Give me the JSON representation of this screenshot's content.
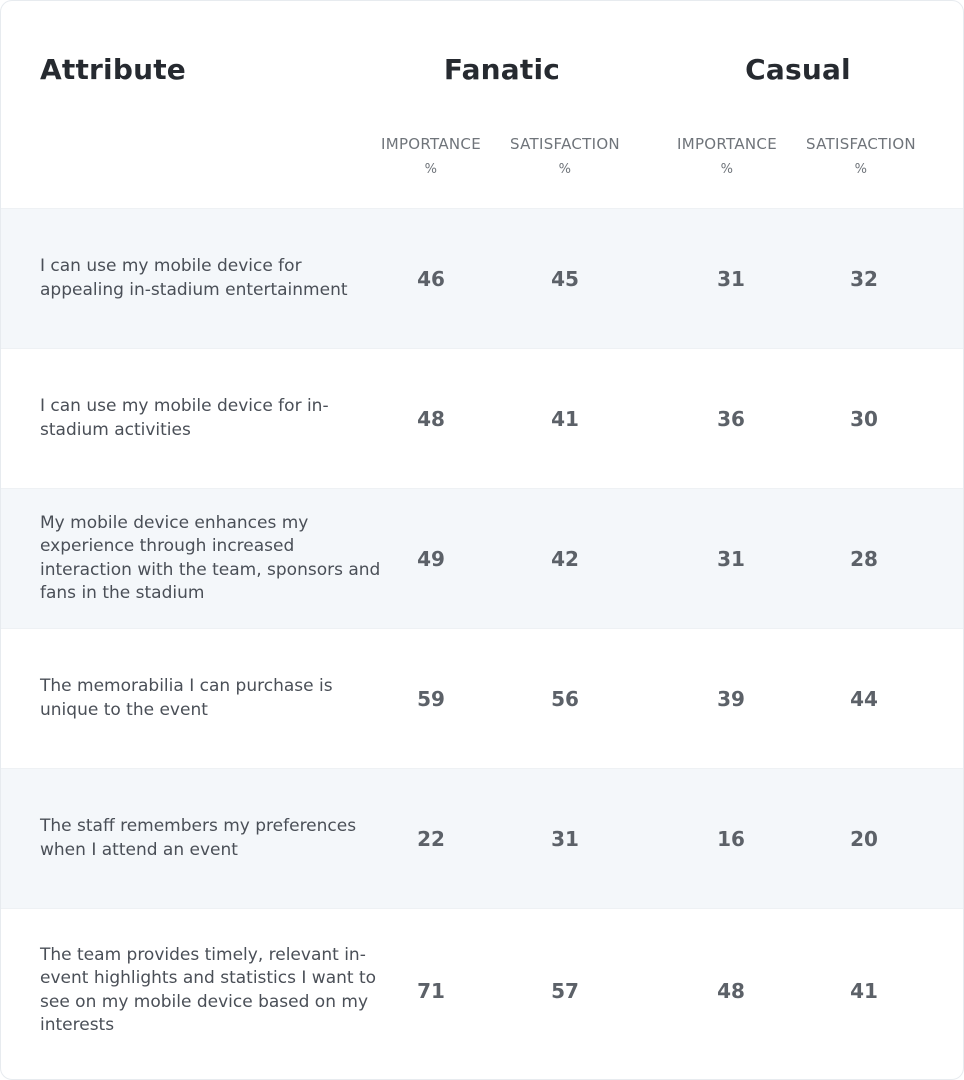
{
  "chart_data": {
    "type": "table",
    "header": {
      "attribute": "Attribute",
      "groups": [
        "Fanatic",
        "Casual"
      ],
      "subcolumns": [
        {
          "label": "IMPORTANCE",
          "unit": "%"
        },
        {
          "label": "SATISFACTION",
          "unit": "%"
        },
        {
          "label": "IMPORTANCE",
          "unit": "%"
        },
        {
          "label": "SATISFACTION",
          "unit": "%"
        }
      ]
    },
    "rows": [
      {
        "attribute": "I can use my mobile device for appealing in-stadium entertainment",
        "values": [
          46,
          45,
          31,
          32
        ]
      },
      {
        "attribute": "I can use my mobile device for in-stadium activities",
        "values": [
          48,
          41,
          36,
          30
        ]
      },
      {
        "attribute": "My mobile device enhances my experience through increased interaction with the team, sponsors and fans in the stadium",
        "values": [
          49,
          42,
          31,
          28
        ]
      },
      {
        "attribute": "The memorabilia I can purchase is unique to the event",
        "values": [
          59,
          56,
          39,
          44
        ]
      },
      {
        "attribute": "The staff remembers my preferences when I attend an event",
        "values": [
          22,
          31,
          16,
          20
        ]
      },
      {
        "attribute": "The team provides timely, relevant in-event highlights and statistics I want to see on my mobile device based on my interests",
        "values": [
          71,
          57,
          48,
          41
        ]
      }
    ]
  }
}
